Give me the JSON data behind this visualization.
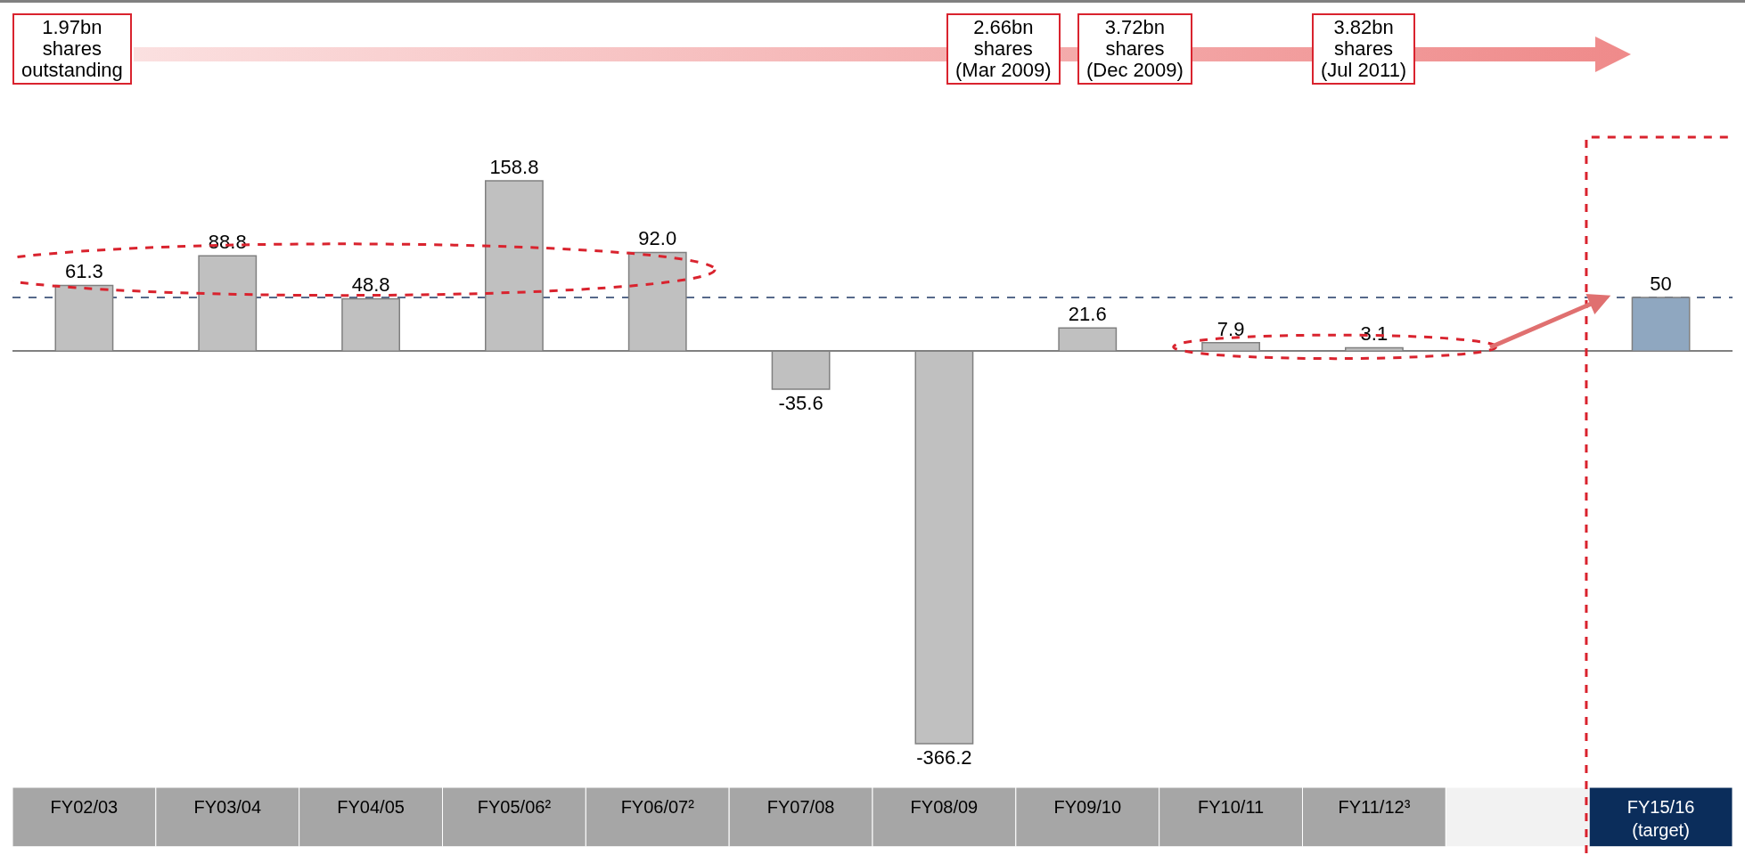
{
  "chart_data": {
    "type": "bar",
    "categories": [
      "FY02/03",
      "FY03/04",
      "FY04/05",
      "FY05/06²",
      "FY06/07²",
      "FY07/08",
      "FY08/09",
      "FY09/10",
      "FY10/11",
      "FY11/12³",
      null,
      "FY15/16\n(target)"
    ],
    "values": [
      61.3,
      88.8,
      48.8,
      158.8,
      92.0,
      -35.6,
      -366.2,
      21.6,
      7.9,
      3.1,
      null,
      50
    ],
    "colors": [
      "#c0c0c0",
      "#c0c0c0",
      "#c0c0c0",
      "#c0c0c0",
      "#c0c0c0",
      "#c0c0c0",
      "#c0c0c0",
      "#c0c0c0",
      "#c0c0c0",
      "#c0c0c0",
      "#c0c0c0",
      "#8fa7c0"
    ],
    "value_labels": [
      "61.3",
      "88.8",
      "48.8",
      "158.8",
      "92.0",
      "-35.6",
      "-366.2",
      "21.6",
      "7.9",
      "3.1",
      null,
      "50"
    ],
    "ref_lines": [
      {
        "axis": "y",
        "value": 50,
        "color": "#1f3864",
        "line_style": "dashed"
      }
    ],
    "annotations": [
      "1.97bn\nshares\noutstanding",
      "2.66bn\nshares\n(Mar 2009)",
      "3.72bn\nshares\n(Dec 2009)",
      "3.82bn\nshares\n(Jul 2011)"
    ]
  }
}
